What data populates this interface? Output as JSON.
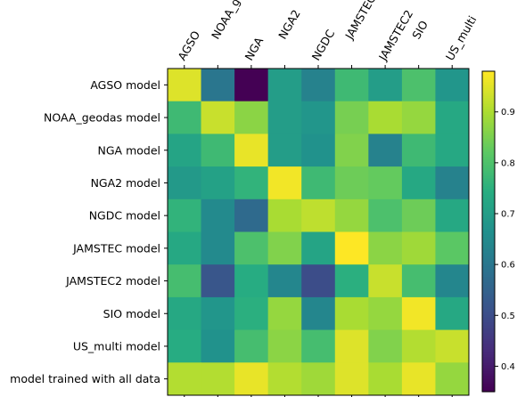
{
  "chart_data": {
    "type": "heatmap",
    "title": "",
    "xlabel": "",
    "ylabel": "",
    "x_categories": [
      "AGSO",
      "NOAA_geodas",
      "NGA",
      "NGA2",
      "NGDC",
      "JAMSTEC",
      "JAMSTEC2",
      "SIO",
      "US_multi"
    ],
    "y_categories": [
      "AGSO model",
      "NOAA_geodas model",
      "NGA model",
      "NGA2 model",
      "NGDC model",
      "JAMSTEC model",
      "JAMSTEC2 model",
      "SIO model",
      "US_multi model",
      "model trained with all data"
    ],
    "values": [
      [
        0.95,
        0.6,
        0.35,
        0.7,
        0.63,
        0.78,
        0.7,
        0.8,
        0.68
      ],
      [
        0.78,
        0.93,
        0.87,
        0.7,
        0.68,
        0.85,
        0.9,
        0.88,
        0.73
      ],
      [
        0.72,
        0.78,
        0.96,
        0.7,
        0.67,
        0.86,
        0.63,
        0.78,
        0.73
      ],
      [
        0.69,
        0.71,
        0.76,
        0.97,
        0.78,
        0.84,
        0.83,
        0.73,
        0.63
      ],
      [
        0.76,
        0.65,
        0.57,
        0.9,
        0.92,
        0.88,
        0.8,
        0.84,
        0.73
      ],
      [
        0.73,
        0.65,
        0.8,
        0.86,
        0.72,
        0.98,
        0.87,
        0.89,
        0.82
      ],
      [
        0.79,
        0.52,
        0.74,
        0.64,
        0.5,
        0.75,
        0.93,
        0.79,
        0.64
      ],
      [
        0.73,
        0.68,
        0.75,
        0.88,
        0.64,
        0.9,
        0.88,
        0.97,
        0.73
      ],
      [
        0.74,
        0.67,
        0.79,
        0.87,
        0.79,
        0.95,
        0.86,
        0.91,
        0.93
      ],
      [
        0.91,
        0.91,
        0.96,
        0.91,
        0.89,
        0.95,
        0.9,
        0.96,
        0.88
      ]
    ],
    "colormap": "viridis",
    "colorbar": {
      "min": 0.35,
      "max": 0.98,
      "ticks": [
        "0.4",
        "0.5",
        "0.6",
        "0.7",
        "0.8",
        "0.9"
      ]
    }
  }
}
